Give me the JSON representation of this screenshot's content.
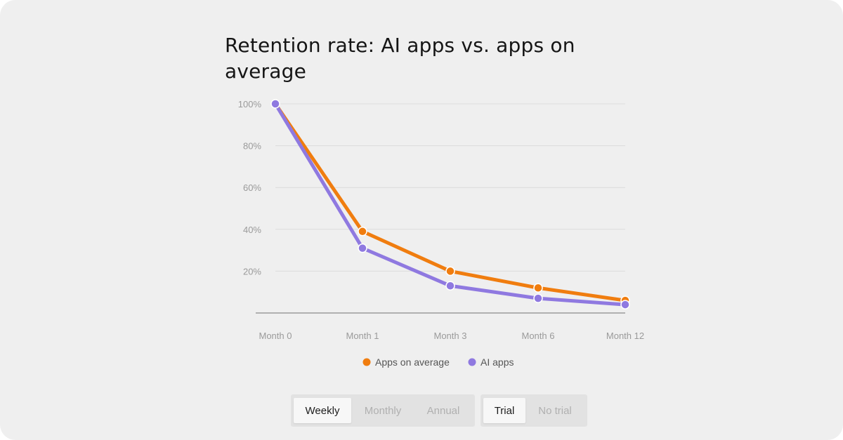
{
  "title": "Retention rate: AI apps vs. apps on average",
  "chart_data": {
    "type": "line",
    "title": "Retention rate: AI apps vs. apps on average",
    "categories": [
      "Month 0",
      "Month 1",
      "Month 3",
      "Month 6",
      "Month 12"
    ],
    "y_ticks": [
      "100%",
      "80%",
      "60%",
      "40%",
      "20%"
    ],
    "ylim": [
      0,
      100
    ],
    "grid": true,
    "legend_position": "bottom",
    "series": [
      {
        "name": "Apps on average",
        "color": "#f07d0f",
        "values": [
          100,
          39,
          20,
          12,
          6
        ]
      },
      {
        "name": "AI apps",
        "color": "#8f79e0",
        "values": [
          100,
          31,
          13,
          7,
          4
        ]
      }
    ]
  },
  "controls": {
    "period": {
      "options": [
        "Weekly",
        "Monthly",
        "Annual"
      ],
      "selected": "Weekly"
    },
    "trial": {
      "options": [
        "Trial",
        "No trial"
      ],
      "selected": "Trial"
    }
  }
}
